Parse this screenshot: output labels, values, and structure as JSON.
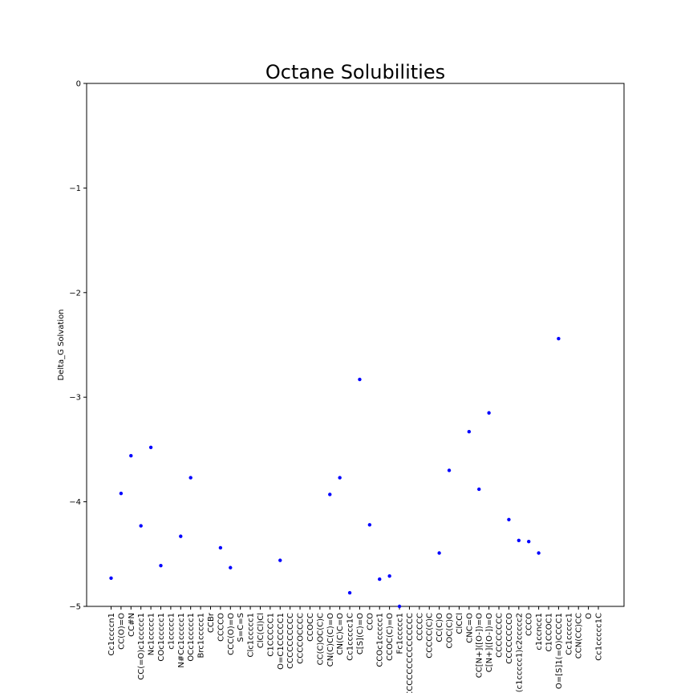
{
  "chart_data": {
    "type": "scatter",
    "title": "Octane Solubilities",
    "xlabel": "",
    "ylabel": "Delta_G Solvation",
    "ylim": [
      -5,
      0
    ],
    "yticks": [
      "0",
      "−1",
      "−2",
      "−3",
      "−4",
      "−5"
    ],
    "ytick_values": [
      0,
      -1,
      -2,
      -3,
      -4,
      -5
    ],
    "grid": false,
    "marker_color": "#0000ff",
    "categories": [
      "Cc1ccccn1",
      "CC(O)=O",
      "CC#N",
      "CC(=O)c1ccccc1",
      "Nc1ccccc1",
      "COc1ccccc1",
      "c1ccccc1",
      "N#Cc1ccccc1",
      "OCc1ccccc1",
      "Brc1ccccc1",
      "CCBr",
      "CCCCO",
      "CCC(O)=O",
      "S=C=S",
      "Clc1ccccc1",
      "ClC(Cl)Cl",
      "C1CCCCC1",
      "O=C1CCCCC1",
      "CCCCCCCCCC",
      "CCCCOCCCC",
      "CCOCC",
      "CC(C)OC(C)C",
      "CN(C)C(C)=O",
      "CN(C)C=O",
      "Cc1ccccc1C",
      "C[S](C)=O",
      "CCO",
      "CCOc1ccccc1",
      "CCOC(C)=O",
      "Fc1ccccc1",
      "CCCCCCCCCCCCCCCC",
      "CCCCC",
      "CCCCC(C)C",
      "CC(C)O",
      "COC(C)O",
      "ClCCl",
      "CNC=O",
      "CC[N+]([O-])=O",
      "C[N+]([O-])=O",
      "CCCCCCCC",
      "CCCCCCCCO",
      "(c1ccccc1)c2ccccc2",
      "CCCO",
      "c1ccncc1",
      "C1CCOC1",
      "O=[S]1(=O)CCCC1",
      "Cc1ccccc1",
      "CCN(CC)CC",
      "O",
      "Cc1ccccc1C"
    ],
    "values": [
      -4.73,
      -3.92,
      -3.56,
      -4.23,
      -3.48,
      -4.61,
      null,
      -4.33,
      -3.77,
      null,
      null,
      -4.44,
      -4.63,
      null,
      null,
      null,
      null,
      -4.56,
      null,
      null,
      null,
      null,
      -3.93,
      -3.77,
      -4.87,
      -2.83,
      -4.22,
      -4.74,
      -4.71,
      -5.0,
      null,
      null,
      null,
      -4.49,
      -3.7,
      null,
      -3.33,
      -3.88,
      -3.15,
      null,
      -4.17,
      -4.37,
      -4.38,
      -4.49,
      null,
      -2.44,
      null,
      null,
      null,
      null
    ]
  }
}
